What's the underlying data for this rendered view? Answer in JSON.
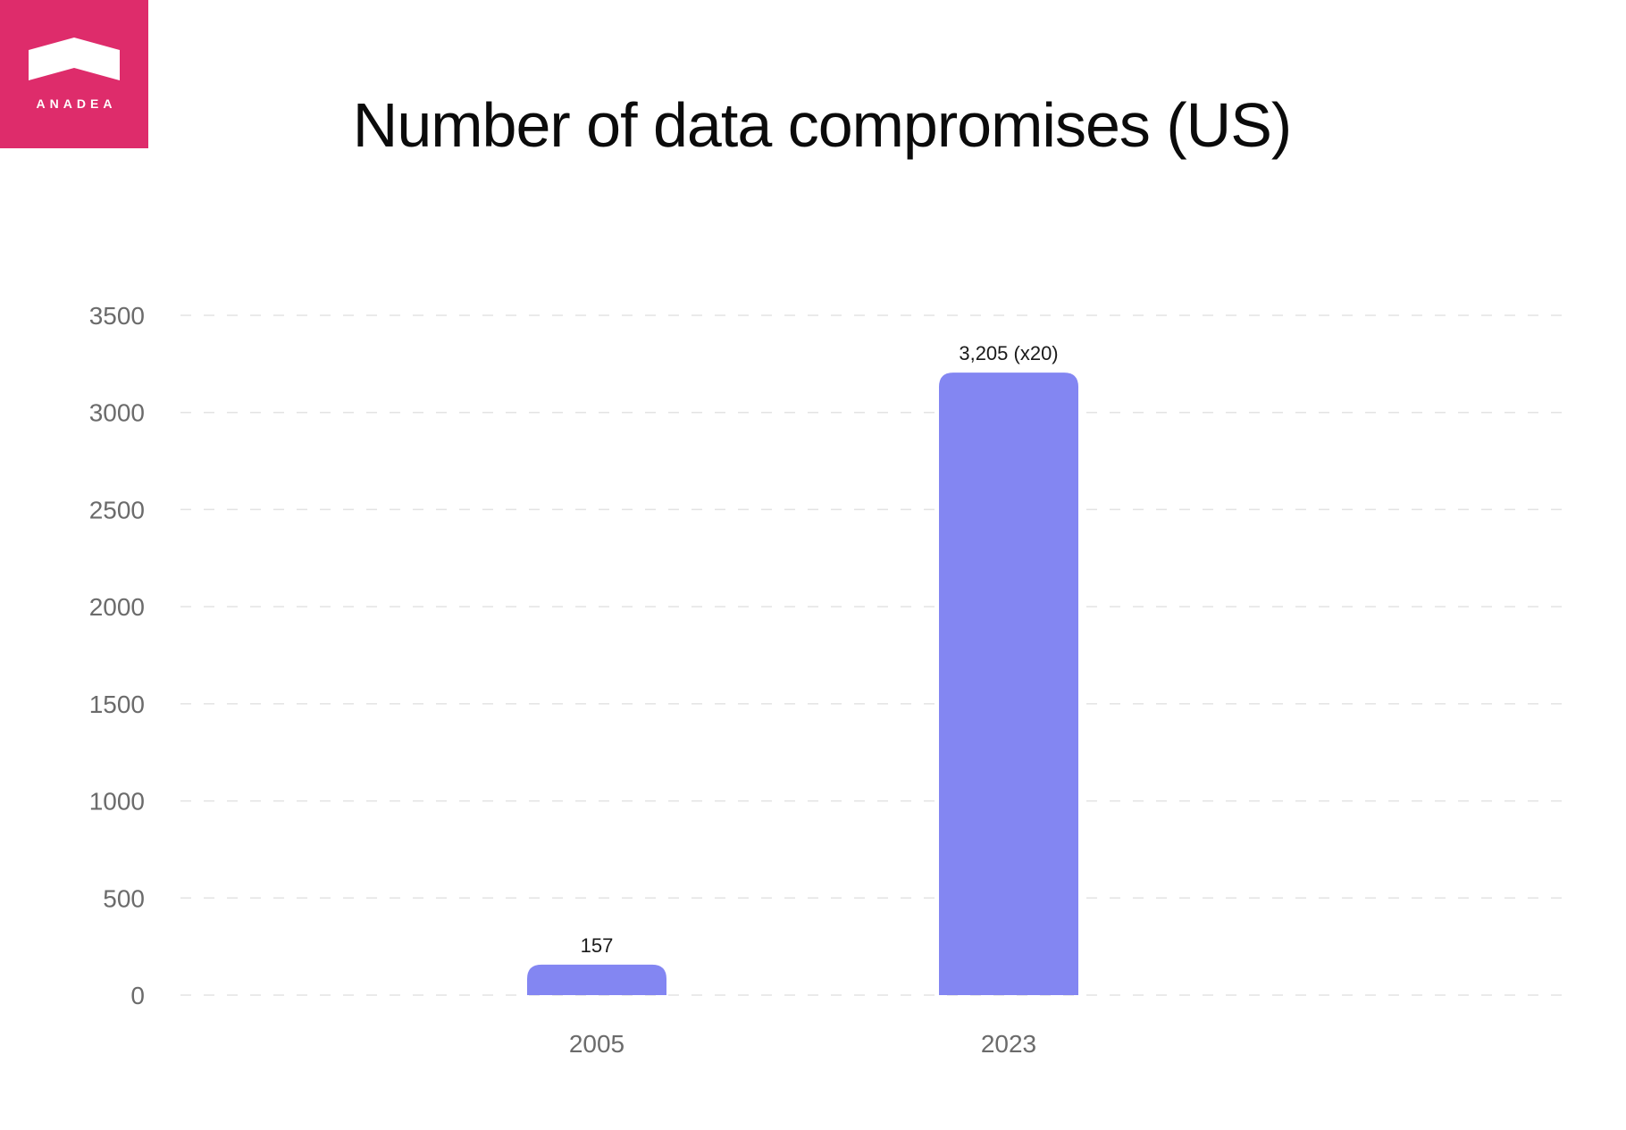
{
  "logo": {
    "text": "ANADEA"
  },
  "colors": {
    "brand": "#de2c6b",
    "bar": "#8386f2",
    "grid": "#e3e3e3"
  },
  "chart_data": {
    "type": "bar",
    "title": "Number of data compromises (US)",
    "categories": [
      "2005",
      "2023"
    ],
    "values": [
      157,
      3205
    ],
    "data_labels": [
      "157",
      "3,205 (x20)"
    ],
    "xlabel": "",
    "ylabel": "",
    "ylim": [
      0,
      3500
    ],
    "yticks": [
      0,
      500,
      1000,
      1500,
      2000,
      2500,
      3000,
      3500
    ],
    "grid": true,
    "legend": "none"
  }
}
